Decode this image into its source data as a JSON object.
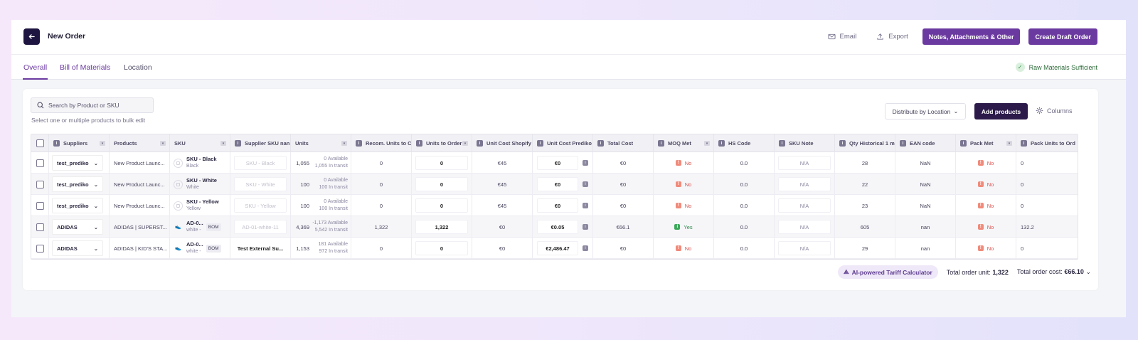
{
  "header": {
    "title": "New Order",
    "email_label": "Email",
    "export_label": "Export",
    "notes_label": "Notes, Attachments & Other",
    "create_label": "Create Draft Order"
  },
  "tabs": [
    {
      "label": "Overall",
      "active": true
    },
    {
      "label": "Bill of Materials",
      "active": false
    },
    {
      "label": "Location",
      "active": false
    }
  ],
  "raw_status": "Raw Materials Sufficient",
  "toolbar": {
    "search_placeholder": "Search by Product or SKU",
    "hint": "Select one or multiple products to bulk edit",
    "distribute_label": "Distribute by Location",
    "add_products_label": "Add products",
    "columns_label": "Columns"
  },
  "columns": [
    "Suppliers",
    "Products",
    "SKU",
    "Supplier SKU nan",
    "Units",
    "Recom. Units to C",
    "Units to Order",
    "Unit Cost Shopify",
    "Unit Cost Prediko",
    "Total Cost",
    "MOQ Met",
    "HS Code",
    "SKU Note",
    "Qty Historical 1 m",
    "EAN code",
    "Pack Met",
    "Pack Units to Ord"
  ],
  "rows": [
    {
      "supplier": "test_prediko",
      "product": "New Product Launc...",
      "sku_name": "SKU - Black",
      "sku_sub": "Black",
      "supplier_sku": "SKU - Black",
      "units": "1,055",
      "avail": "0 Available",
      "transit": "1,055 In transit",
      "recom": "0",
      "to_order": "0",
      "cost_shopify": "€45",
      "cost_prediko": "€0",
      "total": "€0",
      "moq": "No",
      "hs": "0.0",
      "note": "N/A",
      "qty_hist": "28",
      "ean": "NaN",
      "pack": "No",
      "pack_units": "0"
    },
    {
      "supplier": "test_prediko",
      "product": "New Product Launc...",
      "sku_name": "SKU - White",
      "sku_sub": "White",
      "supplier_sku": "SKU - White",
      "units": "100",
      "avail": "0 Available",
      "transit": "100 In transit",
      "recom": "0",
      "to_order": "0",
      "cost_shopify": "€45",
      "cost_prediko": "€0",
      "total": "€0",
      "moq": "No",
      "hs": "0.0",
      "note": "N/A",
      "qty_hist": "22",
      "ean": "NaN",
      "pack": "No",
      "pack_units": "0"
    },
    {
      "supplier": "test_prediko",
      "product": "New Product Launc...",
      "sku_name": "SKU - Yellow",
      "sku_sub": "Yellow",
      "supplier_sku": "SKU - Yellow",
      "units": "100",
      "avail": "0 Available",
      "transit": "100 In transit",
      "recom": "0",
      "to_order": "0",
      "cost_shopify": "€45",
      "cost_prediko": "€0",
      "total": "€0",
      "moq": "No",
      "hs": "0.0",
      "note": "N/A",
      "qty_hist": "23",
      "ean": "NaN",
      "pack": "No",
      "pack_units": "0"
    },
    {
      "supplier": "ADIDAS",
      "product": "ADIDAS | SUPERST...",
      "sku_name": "AD-0...",
      "sku_sub": "white -",
      "bom": "BOM",
      "supplier_sku": "AD-01-white-11",
      "units": "4,369",
      "avail": "-1,173 Available",
      "transit": "5,542 In transit",
      "recom": "1,322",
      "to_order": "1,322",
      "cost_shopify": "€0",
      "cost_prediko": "€0.05",
      "total": "€66.1",
      "moq": "Yes",
      "hs": "0.0",
      "note": "N/A",
      "qty_hist": "605",
      "ean": "nan",
      "pack": "No",
      "pack_units": "132.2"
    },
    {
      "supplier": "ADIDAS",
      "product": "ADIDAS | KID'S STA...",
      "sku_name": "AD-0...",
      "sku_sub": "white -",
      "bom": "BOM",
      "supplier_sku": "Test External Su...",
      "units": "1,153",
      "avail": "181 Available",
      "transit": "972 In transit",
      "recom": "0",
      "to_order": "0",
      "cost_shopify": "€0",
      "cost_prediko": "€2,486.47",
      "total": "€0",
      "moq": "No",
      "hs": "0.0",
      "note": "N/A",
      "qty_hist": "29",
      "ean": "nan",
      "pack": "No",
      "pack_units": "0"
    }
  ],
  "footer": {
    "ai_label": "AI-powered Tariff Calculator",
    "total_unit_label": "Total order unit:",
    "total_unit_value": "1,322",
    "total_cost_label": "Total order cost:",
    "total_cost_value": "€66.10"
  },
  "colors": {
    "accent": "#6b3aa0",
    "dark": "#2b1a4a"
  }
}
